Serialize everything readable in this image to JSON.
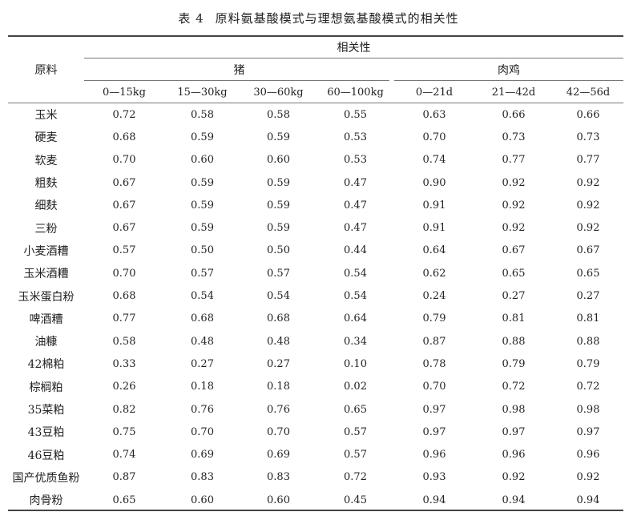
{
  "title": {
    "label": "表 4",
    "text": "原料氨基酸模式与理想氨基酸模式的相关性"
  },
  "header": {
    "row_label": "原料",
    "group": "相关性",
    "species": [
      "猪",
      "肉鸡"
    ],
    "stages": [
      "0—15kg",
      "15—30kg",
      "30—60kg",
      "60—100kg",
      "0—21d",
      "21—42d",
      "42—56d"
    ]
  },
  "rows": [
    {
      "name": "玉米",
      "values": [
        "0.72",
        "0.58",
        "0.58",
        "0.55",
        "0.63",
        "0.66",
        "0.66"
      ]
    },
    {
      "name": "硬麦",
      "values": [
        "0.68",
        "0.59",
        "0.59",
        "0.53",
        "0.70",
        "0.73",
        "0.73"
      ]
    },
    {
      "name": "软麦",
      "values": [
        "0.70",
        "0.60",
        "0.60",
        "0.53",
        "0.74",
        "0.77",
        "0.77"
      ]
    },
    {
      "name": "粗麸",
      "values": [
        "0.67",
        "0.59",
        "0.59",
        "0.47",
        "0.90",
        "0.92",
        "0.92"
      ]
    },
    {
      "name": "细麸",
      "values": [
        "0.67",
        "0.59",
        "0.59",
        "0.47",
        "0.91",
        "0.92",
        "0.92"
      ]
    },
    {
      "name": "三粉",
      "values": [
        "0.67",
        "0.59",
        "0.59",
        "0.47",
        "0.91",
        "0.92",
        "0.92"
      ]
    },
    {
      "name": "小麦酒糟",
      "values": [
        "0.57",
        "0.50",
        "0.50",
        "0.44",
        "0.64",
        "0.67",
        "0.67"
      ]
    },
    {
      "name": "玉米酒糟",
      "values": [
        "0.70",
        "0.57",
        "0.57",
        "0.54",
        "0.62",
        "0.65",
        "0.65"
      ]
    },
    {
      "name": "玉米蛋白粉",
      "values": [
        "0.68",
        "0.54",
        "0.54",
        "0.54",
        "0.24",
        "0.27",
        "0.27"
      ]
    },
    {
      "name": "啤酒糟",
      "values": [
        "0.77",
        "0.68",
        "0.68",
        "0.64",
        "0.79",
        "0.81",
        "0.81"
      ]
    },
    {
      "name": "油糠",
      "values": [
        "0.58",
        "0.48",
        "0.48",
        "0.34",
        "0.87",
        "0.88",
        "0.88"
      ]
    },
    {
      "name": "42棉粕",
      "values": [
        "0.33",
        "0.27",
        "0.27",
        "0.10",
        "0.78",
        "0.79",
        "0.79"
      ]
    },
    {
      "name": "棕榈粕",
      "values": [
        "0.26",
        "0.18",
        "0.18",
        "0.02",
        "0.70",
        "0.72",
        "0.72"
      ]
    },
    {
      "name": "35菜粕",
      "values": [
        "0.82",
        "0.76",
        "0.76",
        "0.65",
        "0.97",
        "0.98",
        "0.98"
      ]
    },
    {
      "name": "43豆粕",
      "values": [
        "0.75",
        "0.70",
        "0.70",
        "0.57",
        "0.97",
        "0.97",
        "0.97"
      ]
    },
    {
      "name": "46豆粕",
      "values": [
        "0.74",
        "0.69",
        "0.69",
        "0.57",
        "0.96",
        "0.96",
        "0.96"
      ]
    },
    {
      "name": "国产优质鱼粉",
      "values": [
        "0.87",
        "0.83",
        "0.83",
        "0.72",
        "0.93",
        "0.92",
        "0.92"
      ]
    },
    {
      "name": "肉骨粉",
      "values": [
        "0.65",
        "0.60",
        "0.60",
        "0.45",
        "0.94",
        "0.94",
        "0.94"
      ]
    }
  ]
}
